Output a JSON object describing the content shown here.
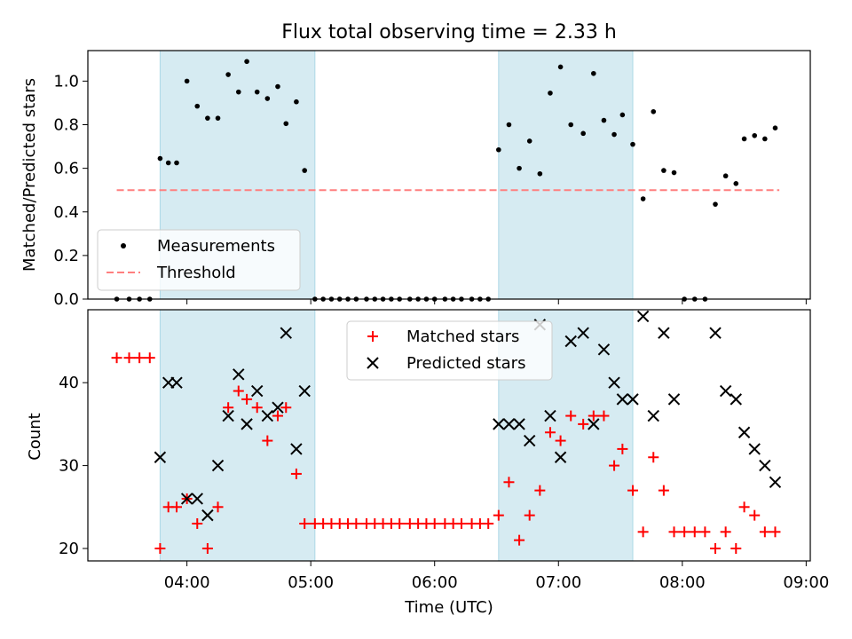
{
  "title": "Flux total observing time = 2.33 h",
  "colors": {
    "shade": "#add8e6",
    "threshold": "#ff7f7f",
    "measurement": "#000000",
    "matched": "#ff0000",
    "predicted": "#000000"
  },
  "chart_data": [
    {
      "type": "scatter",
      "panel": "top",
      "ylabel": "Matched/Predicted stars",
      "ylim": [
        0.0,
        1.14
      ],
      "yticks": [
        "0.0",
        "0.2",
        "0.4",
        "0.6",
        "0.8",
        "1.0"
      ],
      "xlim": [
        "03:12",
        "09:02"
      ],
      "xticks": [
        "04:00",
        "05:00",
        "06:00",
        "07:00",
        "08:00",
        "09:00"
      ],
      "shaded_ranges": [
        [
          "03:47",
          "05:02"
        ],
        [
          "06:31",
          "07:36"
        ]
      ],
      "legend": {
        "position": "lower-left",
        "measurements_label": "Measurements",
        "threshold_label": "Threshold"
      },
      "threshold": {
        "value": 0.5,
        "x_range": [
          "03:26",
          "08:47"
        ]
      },
      "series": [
        {
          "name": "Measurements",
          "marker": "dot",
          "x": [
            "03:26",
            "03:32",
            "03:37",
            "03:42",
            "03:47",
            "03:51",
            "03:55",
            "04:00",
            "04:05",
            "04:10",
            "04:15",
            "04:20",
            "04:25",
            "04:29",
            "04:34",
            "04:39",
            "04:44",
            "04:48",
            "04:53",
            "04:57",
            "05:02",
            "05:06",
            "05:10",
            "05:14",
            "05:18",
            "05:22",
            "05:27",
            "05:31",
            "05:35",
            "05:39",
            "05:43",
            "05:48",
            "05:52",
            "05:56",
            "06:00",
            "06:05",
            "06:09",
            "06:13",
            "06:18",
            "06:22",
            "06:26",
            "06:31",
            "06:36",
            "06:41",
            "06:46",
            "06:51",
            "06:56",
            "07:01",
            "07:06",
            "07:12",
            "07:17",
            "07:22",
            "07:27",
            "07:31",
            "07:36",
            "07:41",
            "07:46",
            "07:51",
            "07:56",
            "08:01",
            "08:06",
            "08:11",
            "08:16",
            "08:21",
            "08:26",
            "08:30",
            "08:35",
            "08:40",
            "08:45"
          ],
          "y": [
            0,
            0,
            0,
            0,
            0.645,
            0.625,
            0.625,
            1.0,
            0.885,
            0.83,
            0.83,
            1.03,
            0.95,
            1.09,
            0.95,
            0.92,
            0.975,
            0.805,
            0.905,
            0.59,
            0,
            0,
            0,
            0,
            0,
            0,
            0,
            0,
            0,
            0,
            0,
            0,
            0,
            0,
            0,
            0,
            0,
            0,
            0,
            0,
            0,
            0.685,
            0.8,
            0.6,
            0.725,
            0.575,
            0.945,
            1.065,
            0.8,
            0.76,
            1.035,
            0.82,
            0.755,
            0.845,
            0.71,
            0.46,
            0.86,
            0.59,
            0.58,
            0,
            0,
            0,
            0.435,
            0.565,
            0.53,
            0.735,
            0.75,
            0.735,
            0.785
          ]
        }
      ]
    },
    {
      "type": "scatter",
      "panel": "bottom",
      "xlabel": "Time (UTC)",
      "ylabel": "Count",
      "ylim": [
        18.5,
        48.8
      ],
      "yticks": [
        "20",
        "30",
        "40"
      ],
      "xlim": [
        "03:12",
        "09:02"
      ],
      "xticks": [
        "04:00",
        "05:00",
        "06:00",
        "07:00",
        "08:00",
        "09:00"
      ],
      "shaded_ranges": [
        [
          "03:47",
          "05:02"
        ],
        [
          "06:31",
          "07:36"
        ]
      ],
      "legend": {
        "position": "top-center"
      },
      "series": [
        {
          "name": "Matched stars",
          "marker": "plus",
          "x": [
            "03:26",
            "03:32",
            "03:37",
            "03:42",
            "03:47",
            "03:51",
            "03:55",
            "04:00",
            "04:05",
            "04:10",
            "04:15",
            "04:20",
            "04:25",
            "04:29",
            "04:34",
            "04:39",
            "04:44",
            "04:48",
            "04:53",
            "04:57",
            "05:02",
            "05:06",
            "05:10",
            "05:14",
            "05:18",
            "05:22",
            "05:27",
            "05:31",
            "05:35",
            "05:39",
            "05:43",
            "05:48",
            "05:52",
            "05:56",
            "06:00",
            "06:05",
            "06:09",
            "06:13",
            "06:18",
            "06:22",
            "06:26",
            "06:31",
            "06:36",
            "06:41",
            "06:46",
            "06:51",
            "06:56",
            "07:01",
            "07:06",
            "07:12",
            "07:17",
            "07:22",
            "07:27",
            "07:31",
            "07:36",
            "07:41",
            "07:46",
            "07:51",
            "07:56",
            "08:01",
            "08:06",
            "08:11",
            "08:16",
            "08:21",
            "08:26",
            "08:30",
            "08:35",
            "08:40",
            "08:45"
          ],
          "y": [
            43,
            43,
            43,
            43,
            20,
            25,
            25,
            26,
            23,
            20,
            25,
            37,
            39,
            38,
            37,
            33,
            36,
            37,
            29,
            23,
            23,
            23,
            23,
            23,
            23,
            23,
            23,
            23,
            23,
            23,
            23,
            23,
            23,
            23,
            23,
            23,
            23,
            23,
            23,
            23,
            23,
            24,
            28,
            21,
            24,
            27,
            34,
            33,
            36,
            35,
            36,
            36,
            30,
            32,
            27,
            22,
            31,
            27,
            22,
            22,
            22,
            22,
            20,
            22,
            20,
            25,
            24,
            22,
            22
          ]
        },
        {
          "name": "Predicted stars",
          "marker": "x",
          "x": [
            "03:47",
            "03:51",
            "03:55",
            "04:00",
            "04:05",
            "04:10",
            "04:15",
            "04:20",
            "04:25",
            "04:29",
            "04:34",
            "04:39",
            "04:44",
            "04:48",
            "04:53",
            "04:57",
            "06:31",
            "06:36",
            "06:41",
            "06:46",
            "06:51",
            "06:56",
            "07:01",
            "07:06",
            "07:12",
            "07:17",
            "07:22",
            "07:27",
            "07:31",
            "07:36",
            "07:41",
            "07:46",
            "07:51",
            "07:56",
            "08:16",
            "08:21",
            "08:26",
            "08:30",
            "08:35",
            "08:40",
            "08:45"
          ],
          "y": [
            31,
            40,
            40,
            26,
            26,
            24,
            30,
            36,
            41,
            35,
            39,
            36,
            37,
            46,
            32,
            39,
            35,
            35,
            35,
            33,
            47,
            36,
            31,
            45,
            46,
            35,
            44,
            40,
            38,
            38,
            48,
            36,
            46,
            38,
            46,
            39,
            38,
            34,
            32,
            30,
            28
          ]
        }
      ]
    }
  ]
}
